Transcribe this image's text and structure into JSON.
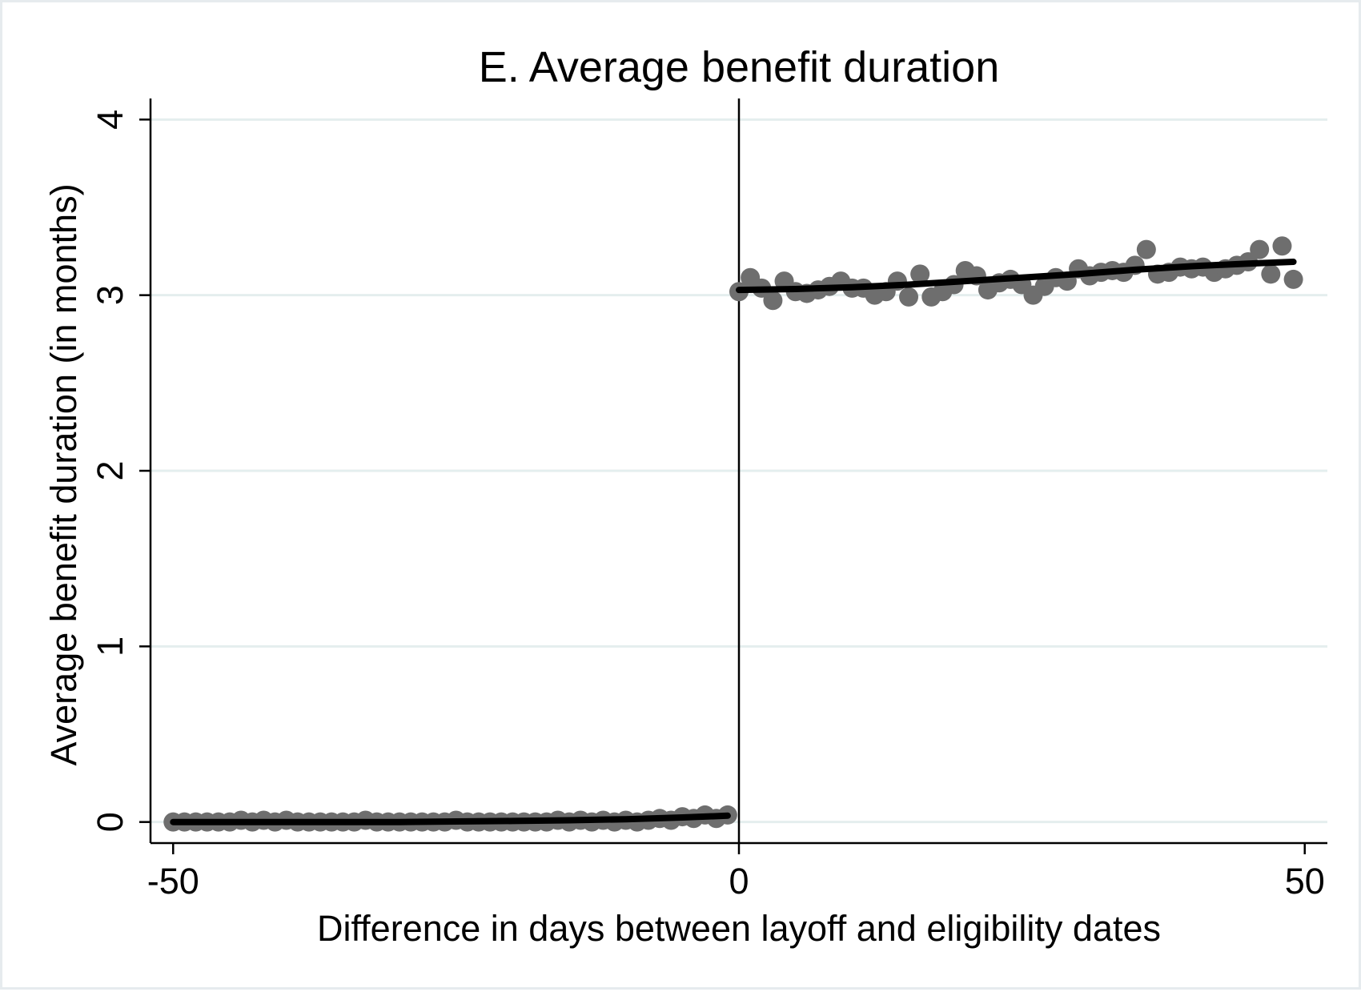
{
  "chart_data": {
    "type": "scatter",
    "title": "E. Average benefit duration",
    "xlabel": "Difference in days between layoff and eligibility dates",
    "ylabel": "Average benefit duration (in months)",
    "xlim": [
      -52,
      52
    ],
    "ylim": [
      -0.12,
      4.12
    ],
    "xticks": [
      -50,
      0,
      50
    ],
    "xtick_labels": [
      "-50",
      "0",
      "50"
    ],
    "yticks": [
      0,
      1,
      2,
      3,
      4
    ],
    "ytick_labels": [
      "0",
      "1",
      "2",
      "3",
      "4"
    ],
    "grid": "horizontal",
    "cutoff_x": 0,
    "colors": {
      "points": "#6e6e6e",
      "fit": "#000000",
      "grid": "#e4eeee",
      "axis": "#000000"
    },
    "series": [
      {
        "role": "points",
        "x": [
          -50,
          -49,
          -48,
          -47,
          -46,
          -45,
          -44,
          -43,
          -42,
          -41,
          -40,
          -39,
          -38,
          -37,
          -36,
          -35,
          -34,
          -33,
          -32,
          -31,
          -30,
          -29,
          -28,
          -27,
          -26,
          -25,
          -24,
          -23,
          -22,
          -21,
          -20,
          -19,
          -18,
          -17,
          -16,
          -15,
          -14,
          -13,
          -12,
          -11,
          -10,
          -9,
          -8,
          -7,
          -6,
          -5,
          -4,
          -3,
          -2,
          -1
        ],
        "y": [
          0.0,
          0.0,
          0.0,
          0.0,
          0.0,
          0.0,
          0.01,
          0.0,
          0.01,
          0.0,
          0.01,
          0.0,
          0.0,
          0.0,
          0.0,
          0.0,
          0.0,
          0.01,
          0.0,
          0.0,
          0.0,
          0.0,
          0.0,
          0.0,
          0.0,
          0.01,
          0.0,
          0.0,
          0.0,
          0.0,
          0.0,
          0.0,
          0.0,
          0.0,
          0.01,
          0.0,
          0.01,
          0.0,
          0.01,
          0.0,
          0.01,
          0.0,
          0.01,
          0.02,
          0.01,
          0.03,
          0.02,
          0.04,
          0.02,
          0.04
        ]
      },
      {
        "role": "points",
        "x": [
          0,
          1,
          2,
          3,
          4,
          5,
          6,
          7,
          8,
          9,
          10,
          11,
          12,
          13,
          14,
          15,
          16,
          17,
          18,
          19,
          20,
          21,
          22,
          23,
          24,
          25,
          26,
          27,
          28,
          29,
          30,
          31,
          32,
          33,
          34,
          35,
          36,
          37,
          38,
          39,
          40,
          41,
          42,
          43,
          44,
          45,
          46,
          47,
          48,
          49
        ],
        "y": [
          3.02,
          3.1,
          3.04,
          2.97,
          3.08,
          3.02,
          3.01,
          3.03,
          3.05,
          3.08,
          3.04,
          3.04,
          3.0,
          3.02,
          3.08,
          2.99,
          3.12,
          2.99,
          3.02,
          3.06,
          3.14,
          3.11,
          3.03,
          3.07,
          3.09,
          3.06,
          3.0,
          3.05,
          3.1,
          3.08,
          3.15,
          3.11,
          3.13,
          3.14,
          3.13,
          3.17,
          3.26,
          3.12,
          3.13,
          3.16,
          3.15,
          3.16,
          3.13,
          3.15,
          3.17,
          3.19,
          3.26,
          3.12,
          3.28,
          3.09
        ]
      },
      {
        "role": "fit",
        "x": [
          -50,
          -45,
          -40,
          -35,
          -30,
          -25,
          -20,
          -15,
          -10,
          -5,
          -1
        ],
        "y": [
          0.0,
          0.0,
          0.0,
          0.0,
          0.0,
          0.003,
          0.006,
          0.01,
          0.016,
          0.026,
          0.036
        ]
      },
      {
        "role": "fit",
        "x": [
          0,
          5,
          10,
          15,
          20,
          25,
          30,
          35,
          40,
          45,
          49
        ],
        "y": [
          3.03,
          3.035,
          3.045,
          3.06,
          3.08,
          3.1,
          3.12,
          3.145,
          3.165,
          3.18,
          3.19
        ]
      }
    ]
  }
}
